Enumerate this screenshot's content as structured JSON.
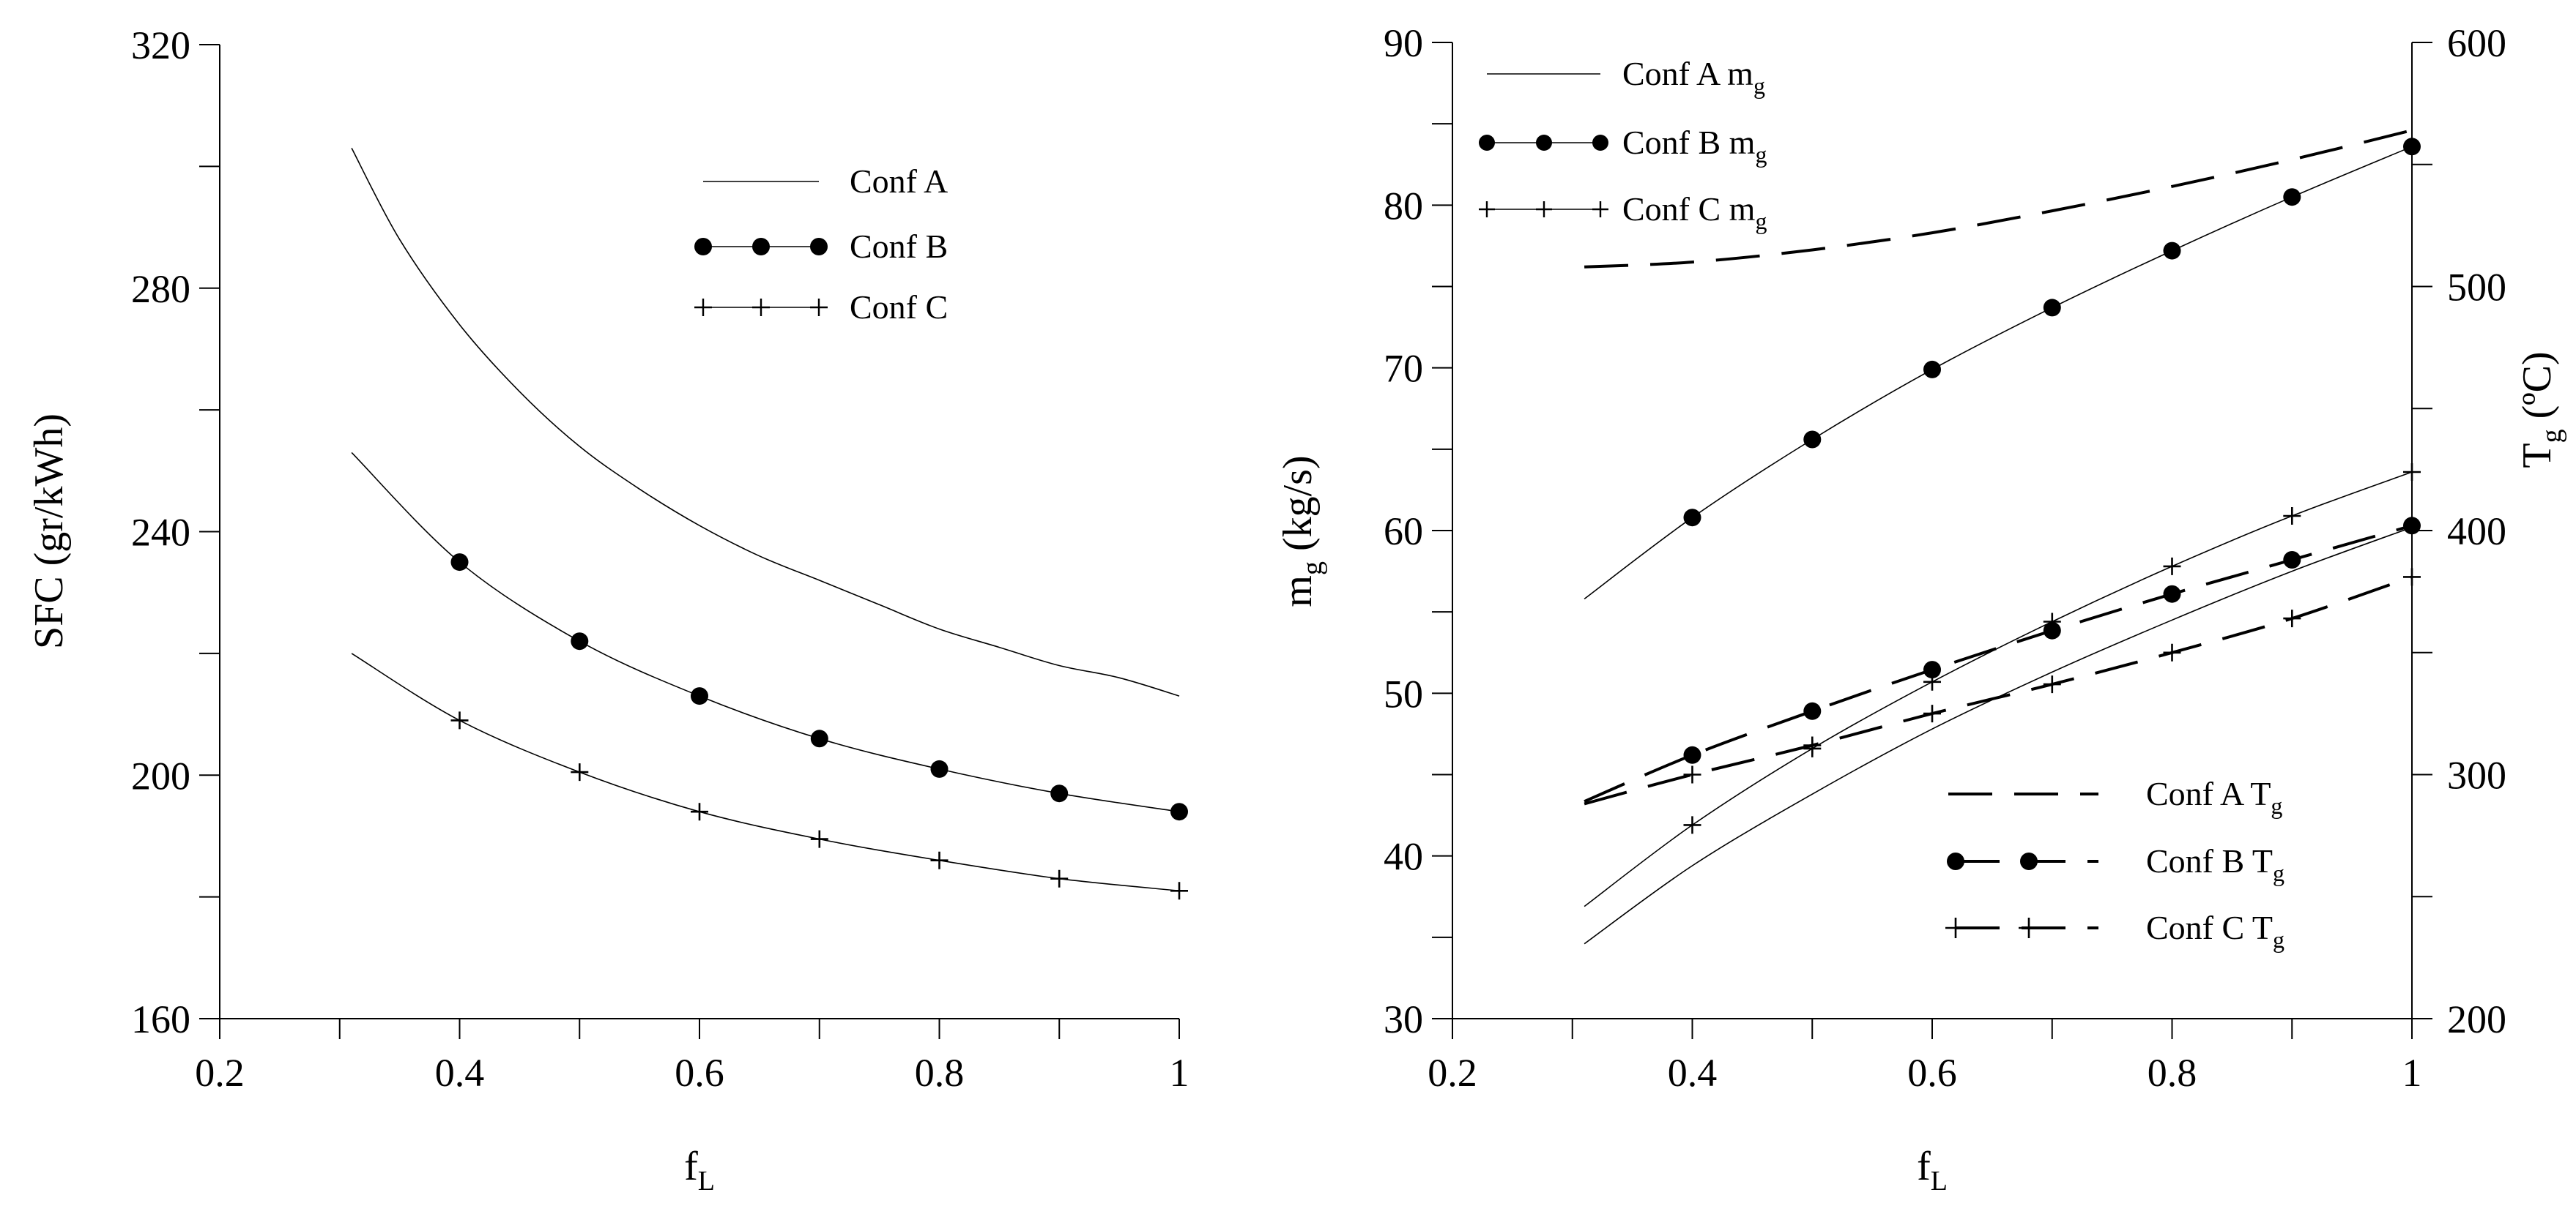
{
  "chart_data": [
    {
      "type": "line",
      "xlabel": "f",
      "xlabel_sub": "L",
      "ylabel": "SFC (gr/kWh)",
      "xlim": [
        0.2,
        1.0
      ],
      "ylim": [
        160,
        320
      ],
      "xticks": [
        "0.2",
        "0.4",
        "0.6",
        "0.8",
        "1"
      ],
      "yticks": [
        "160",
        "200",
        "240",
        "280",
        "320"
      ],
      "grid": false,
      "legend_position": "top-center",
      "series": [
        {
          "name": "Conf A",
          "marker": "none",
          "linestyle": "solid",
          "x": [
            0.31,
            0.35,
            0.4,
            0.45,
            0.5,
            0.55,
            0.6,
            0.65,
            0.7,
            0.75,
            0.8,
            0.85,
            0.9,
            0.95,
            1.0
          ],
          "y": [
            303,
            288,
            274,
            263,
            254,
            247,
            241,
            236,
            232,
            228,
            224,
            221,
            218,
            216,
            213
          ]
        },
        {
          "name": "Conf B",
          "marker": "circle",
          "linestyle": "solid",
          "x": [
            0.31,
            0.4,
            0.5,
            0.6,
            0.7,
            0.8,
            0.9,
            1.0
          ],
          "y": [
            253,
            235,
            222,
            213,
            206,
            201,
            197,
            194
          ],
          "marker_x": [
            0.4,
            0.5,
            0.6,
            0.7,
            0.8,
            0.9,
            1.0
          ]
        },
        {
          "name": "Conf C",
          "marker": "plus",
          "linestyle": "solid",
          "x": [
            0.31,
            0.4,
            0.5,
            0.6,
            0.7,
            0.8,
            0.9,
            1.0
          ],
          "y": [
            220,
            209,
            200.5,
            194,
            189.5,
            186,
            183,
            181
          ],
          "marker_x": [
            0.4,
            0.5,
            0.6,
            0.7,
            0.8,
            0.9,
            1.0
          ]
        }
      ]
    },
    {
      "type": "line",
      "xlabel": "f",
      "xlabel_sub": "L",
      "ylabel": "m",
      "ylabel_sub": "g",
      "ylabel_suffix": " (kg/s)",
      "y2label": "T",
      "y2label_sub": "g",
      "y2label_suffix": " (ºC)",
      "xlim": [
        0.2,
        1.0
      ],
      "ylim": [
        30,
        90
      ],
      "y2lim": [
        200,
        600
      ],
      "xticks": [
        "0.2",
        "0.4",
        "0.6",
        "0.8",
        "1"
      ],
      "yticks": [
        "30",
        "40",
        "50",
        "60",
        "70",
        "80",
        "90"
      ],
      "y2ticks": [
        "200",
        "300",
        "400",
        "500",
        "600"
      ],
      "grid": false,
      "legend_position": "top-left and bottom-right",
      "series": [
        {
          "name": "Conf A m",
          "name_sub": "g",
          "axis": "left",
          "marker": "none",
          "linestyle": "solid",
          "x": [
            0.31,
            0.4,
            0.5,
            0.6,
            0.7,
            0.8,
            0.9,
            1.0
          ],
          "y": [
            34.6,
            39.4,
            43.8,
            47.8,
            51.3,
            54.5,
            57.5,
            60.2
          ]
        },
        {
          "name": "Conf B m",
          "name_sub": "g",
          "axis": "left",
          "marker": "circle",
          "linestyle": "solid",
          "x": [
            0.31,
            0.4,
            0.5,
            0.6,
            0.7,
            0.8,
            0.9,
            1.0
          ],
          "y": [
            55.8,
            60.8,
            65.6,
            69.9,
            73.7,
            77.2,
            80.5,
            83.6
          ],
          "marker_x": [
            0.4,
            0.5,
            0.6,
            0.7,
            0.8,
            0.9,
            1.0
          ]
        },
        {
          "name": "Conf C m",
          "name_sub": "g",
          "axis": "left",
          "marker": "plus",
          "linestyle": "solid",
          "x": [
            0.31,
            0.4,
            0.5,
            0.6,
            0.7,
            0.8,
            0.9,
            1.0
          ],
          "y": [
            36.9,
            41.9,
            46.6,
            50.7,
            54.4,
            57.8,
            60.9,
            63.6
          ],
          "marker_x": [
            0.4,
            0.5,
            0.6,
            0.7,
            0.8,
            0.9,
            1.0
          ]
        },
        {
          "name": "Conf A T",
          "name_sub": "g",
          "axis": "right",
          "marker": "none",
          "linestyle": "dashed",
          "x": [
            0.31,
            0.4,
            0.5,
            0.6,
            0.7,
            0.8,
            0.9,
            1.0
          ],
          "y": [
            508,
            510,
            515,
            522,
            531,
            541,
            552,
            564
          ]
        },
        {
          "name": "Conf B T",
          "name_sub": "g",
          "axis": "right",
          "marker": "circle",
          "linestyle": "dashed",
          "x": [
            0.31,
            0.4,
            0.5,
            0.6,
            0.7,
            0.8,
            0.9,
            1.0
          ],
          "y": [
            289,
            308,
            326,
            343,
            359,
            374,
            388,
            402
          ],
          "marker_x": [
            0.4,
            0.5,
            0.6,
            0.7,
            0.8,
            0.9,
            1.0
          ]
        },
        {
          "name": "Conf C T",
          "name_sub": "g",
          "axis": "right",
          "marker": "plus",
          "linestyle": "dashed",
          "x": [
            0.31,
            0.4,
            0.5,
            0.6,
            0.7,
            0.8,
            0.9,
            1.0
          ],
          "y": [
            288,
            300,
            312,
            325,
            337,
            350,
            364,
            381
          ],
          "marker_x": [
            0.4,
            0.5,
            0.6,
            0.7,
            0.8,
            0.9,
            1.0
          ]
        }
      ]
    }
  ]
}
